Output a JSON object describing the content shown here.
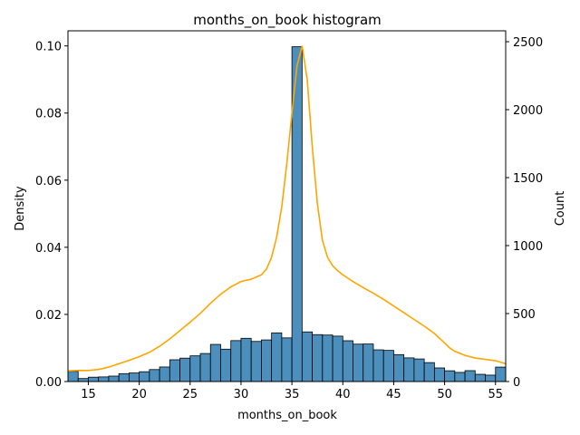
{
  "chart_data": {
    "type": "bar",
    "title": "months_on_book histogram",
    "xlabel": "months_on_book",
    "ylabel": "Density",
    "y2label": "Count",
    "xlim": [
      13,
      56
    ],
    "ylim": [
      0,
      0.1045
    ],
    "y2lim": [
      0,
      2580
    ],
    "xticks": [
      15,
      20,
      25,
      30,
      35,
      40,
      45,
      50,
      55
    ],
    "yticks": [
      "0.00",
      "0.02",
      "0.04",
      "0.06",
      "0.08",
      "0.10"
    ],
    "y2ticks": [
      "0",
      "500",
      "1000",
      "1500",
      "2000",
      "2500"
    ],
    "grid": false,
    "legend": "none",
    "bars": {
      "name": "Count",
      "bin_start": 13,
      "bin_width": 1,
      "color": "#4c8fbd",
      "edgecolor": "#000000",
      "values": [
        75,
        22,
        32,
        34,
        40,
        58,
        63,
        72,
        88,
        107,
        160,
        172,
        189,
        206,
        273,
        238,
        301,
        318,
        295,
        306,
        358,
        321,
        2463,
        365,
        345,
        342,
        334,
        300,
        275,
        276,
        233,
        229,
        198,
        174,
        166,
        139,
        100,
        79,
        67,
        80,
        53,
        47,
        106
      ]
    },
    "kde": {
      "name": "Density",
      "color": "#ffa500",
      "x": [
        13,
        14,
        15,
        16,
        17,
        18,
        19,
        20,
        21,
        22,
        23,
        24,
        25,
        26,
        27,
        28,
        29,
        30,
        31,
        32,
        32.5,
        33,
        33.5,
        34,
        34.5,
        35,
        35.5,
        36,
        36.5,
        37,
        37.5,
        38,
        38.5,
        39,
        39.5,
        40,
        41,
        42,
        43,
        44,
        45,
        46,
        47,
        48,
        49,
        50,
        50.5,
        51,
        52,
        53,
        54,
        55,
        56
      ],
      "y": [
        0.0032,
        0.0033,
        0.0033,
        0.0036,
        0.0043,
        0.0053,
        0.0063,
        0.0074,
        0.0087,
        0.0105,
        0.0127,
        0.0152,
        0.0177,
        0.0203,
        0.0233,
        0.026,
        0.0282,
        0.0298,
        0.0305,
        0.0318,
        0.0335,
        0.037,
        0.043,
        0.052,
        0.065,
        0.08,
        0.094,
        0.1,
        0.09,
        0.07,
        0.053,
        0.042,
        0.037,
        0.0345,
        0.033,
        0.0318,
        0.0298,
        0.028,
        0.0263,
        0.0245,
        0.0225,
        0.0205,
        0.0185,
        0.0165,
        0.0143,
        0.0115,
        0.01,
        0.009,
        0.0078,
        0.007,
        0.0066,
        0.0062,
        0.0053
      ]
    }
  }
}
